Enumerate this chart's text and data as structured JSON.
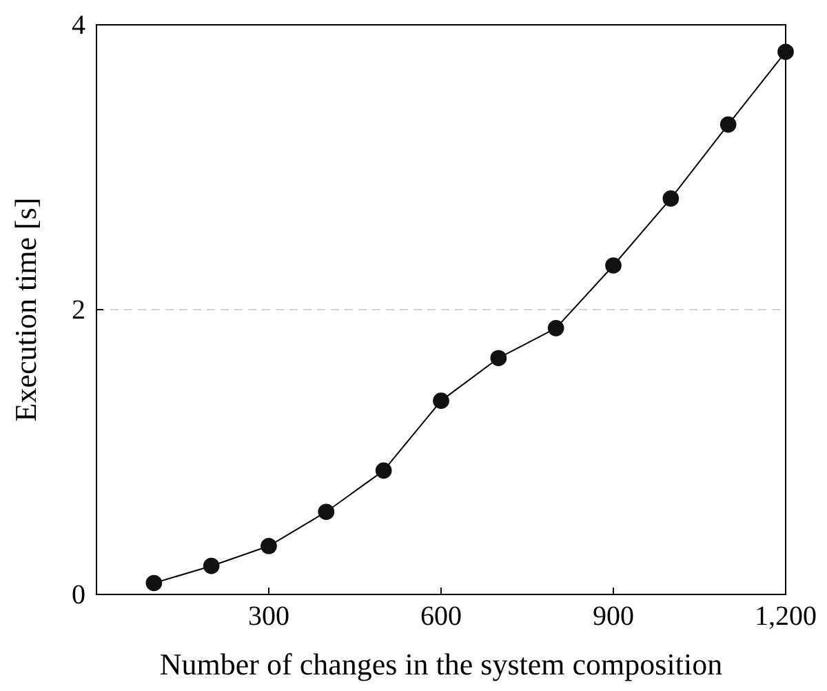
{
  "chart_data": {
    "type": "line",
    "xlabel": "Number of changes in the system composition",
    "ylabel": "Execution time [s]",
    "x": [
      100,
      200,
      300,
      400,
      500,
      600,
      700,
      800,
      900,
      1000,
      1100,
      1200
    ],
    "values": [
      0.08,
      0.2,
      0.34,
      0.58,
      0.87,
      1.36,
      1.66,
      1.87,
      2.31,
      2.78,
      3.3,
      3.81
    ],
    "color": "#000000",
    "marker": "circle",
    "line_style": "solid",
    "grid": "y",
    "xlim": [
      0,
      1200
    ],
    "xticks": [
      300,
      600,
      900,
      {
        "value": 1200,
        "label": "1,200"
      }
    ],
    "ylim": [
      0,
      4
    ],
    "yticks": [
      0,
      2,
      4
    ]
  }
}
